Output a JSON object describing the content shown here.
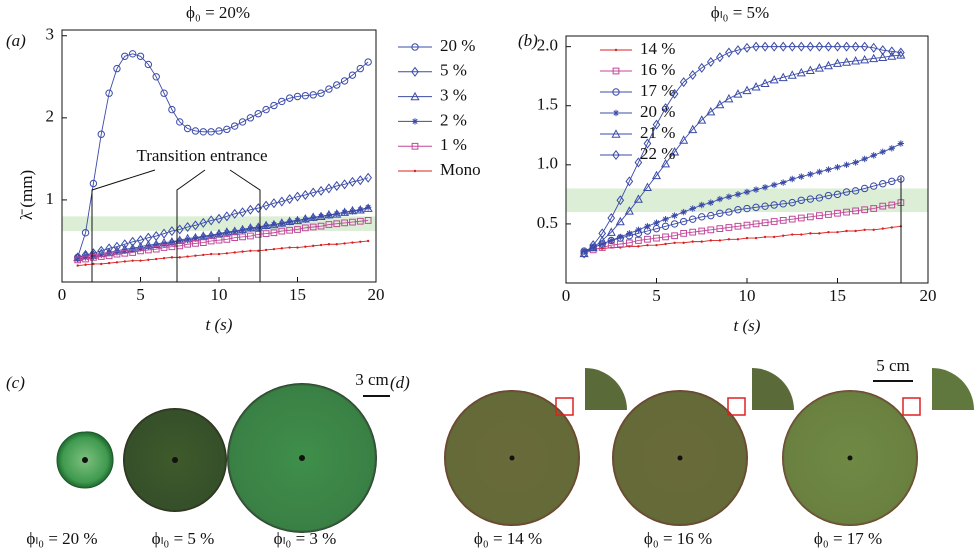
{
  "chart_data": [
    {
      "type": "line",
      "title": "ϕ₀ = 20%",
      "xlabel": "t (s)",
      "ylabel": "λ̄ (mm)",
      "annotation": "Transition entrance",
      "xlim": [
        0,
        20
      ],
      "ylim": [
        0,
        3.07
      ],
      "xticks": [
        0,
        5,
        10,
        15,
        20
      ],
      "yticks": [
        1,
        2,
        3
      ],
      "band": [
        0.62,
        0.8
      ],
      "band_color": "#dcefd6",
      "legend": "outside-right",
      "x": [
        1,
        1.5,
        2,
        2.5,
        3,
        3.5,
        4,
        4.5,
        5,
        5.5,
        6,
        6.5,
        7,
        7.5,
        8,
        8.5,
        9,
        9.5,
        10,
        10.5,
        11,
        11.5,
        12,
        12.5,
        13,
        13.5,
        14,
        14.5,
        15,
        15.5,
        16,
        16.5,
        17,
        17.5,
        18,
        18.5,
        19,
        19.5
      ],
      "series": [
        {
          "name": "20 %",
          "color": "#3b4ba8",
          "marker": "circle",
          "values": [
            0.3,
            0.6,
            1.2,
            1.8,
            2.3,
            2.6,
            2.75,
            2.78,
            2.75,
            2.65,
            2.5,
            2.3,
            2.1,
            1.95,
            1.87,
            1.84,
            1.83,
            1.83,
            1.84,
            1.86,
            1.9,
            1.95,
            2.0,
            2.05,
            2.1,
            2.15,
            2.2,
            2.24,
            2.26,
            2.27,
            2.28,
            2.3,
            2.35,
            2.4,
            2.45,
            2.52,
            2.6,
            2.68
          ]
        },
        {
          "name": "5 %",
          "color": "#3b4ba8",
          "marker": "diamond",
          "values": [
            0.3,
            0.33,
            0.35,
            0.38,
            0.41,
            0.43,
            0.46,
            0.49,
            0.51,
            0.54,
            0.56,
            0.59,
            0.62,
            0.64,
            0.67,
            0.69,
            0.72,
            0.75,
            0.77,
            0.8,
            0.83,
            0.85,
            0.88,
            0.9,
            0.93,
            0.96,
            0.98,
            1.01,
            1.04,
            1.06,
            1.09,
            1.11,
            1.14,
            1.17,
            1.19,
            1.22,
            1.24,
            1.27
          ]
        },
        {
          "name": "3 %",
          "color": "#3b4ba8",
          "marker": "triangle",
          "values": [
            0.3,
            0.32,
            0.33,
            0.35,
            0.36,
            0.38,
            0.4,
            0.41,
            0.43,
            0.45,
            0.46,
            0.48,
            0.49,
            0.51,
            0.53,
            0.54,
            0.56,
            0.57,
            0.59,
            0.61,
            0.62,
            0.64,
            0.66,
            0.67,
            0.69,
            0.7,
            0.72,
            0.74,
            0.75,
            0.77,
            0.79,
            0.8,
            0.82,
            0.83,
            0.85,
            0.87,
            0.88,
            0.9
          ]
        },
        {
          "name": "2 %",
          "color": "#3b4ba8",
          "marker": "star",
          "values": [
            0.28,
            0.3,
            0.31,
            0.33,
            0.35,
            0.36,
            0.38,
            0.4,
            0.41,
            0.43,
            0.45,
            0.46,
            0.48,
            0.5,
            0.51,
            0.53,
            0.55,
            0.56,
            0.58,
            0.6,
            0.61,
            0.63,
            0.65,
            0.66,
            0.68,
            0.7,
            0.71,
            0.73,
            0.75,
            0.76,
            0.78,
            0.8,
            0.81,
            0.83,
            0.85,
            0.86,
            0.88,
            0.91
          ]
        },
        {
          "name": "1 %",
          "color": "#c0479a",
          "marker": "square",
          "values": [
            0.27,
            0.28,
            0.3,
            0.31,
            0.32,
            0.34,
            0.35,
            0.36,
            0.38,
            0.39,
            0.4,
            0.42,
            0.43,
            0.44,
            0.46,
            0.47,
            0.48,
            0.5,
            0.51,
            0.52,
            0.54,
            0.55,
            0.56,
            0.58,
            0.59,
            0.6,
            0.62,
            0.63,
            0.64,
            0.66,
            0.67,
            0.68,
            0.7,
            0.71,
            0.72,
            0.73,
            0.74,
            0.75
          ]
        },
        {
          "name": "Mono",
          "color": "#d82020",
          "marker": "dot",
          "values": [
            0.2,
            0.21,
            0.22,
            0.22,
            0.23,
            0.24,
            0.25,
            0.26,
            0.26,
            0.27,
            0.28,
            0.29,
            0.3,
            0.3,
            0.31,
            0.32,
            0.33,
            0.34,
            0.34,
            0.35,
            0.36,
            0.37,
            0.38,
            0.38,
            0.39,
            0.4,
            0.41,
            0.42,
            0.42,
            0.43,
            0.44,
            0.45,
            0.46,
            0.46,
            0.47,
            0.48,
            0.49,
            0.5
          ]
        }
      ]
    },
    {
      "type": "line",
      "title": "ϕₗ₀ = 5%",
      "xlabel": "t (s)",
      "xlim": [
        0,
        20
      ],
      "ylim": [
        0,
        2.09
      ],
      "xticks": [
        0,
        5,
        10,
        15,
        20
      ],
      "yticks": [
        {
          "value": 0.5,
          "label": "0.5"
        },
        {
          "value": 1.0,
          "label": "1.0"
        },
        {
          "value": 1.5,
          "label": "1.5"
        },
        {
          "value": 2.0,
          "label": "2.0"
        }
      ],
      "band": [
        0.6,
        0.8
      ],
      "band_color": "#dcefd6",
      "legend": "upper-left",
      "x": [
        1,
        1.5,
        2,
        2.5,
        3,
        3.5,
        4,
        4.5,
        5,
        5.5,
        6,
        6.5,
        7,
        7.5,
        8,
        8.5,
        9,
        9.5,
        10,
        10.5,
        11,
        11.5,
        12,
        12.5,
        13,
        13.5,
        14,
        14.5,
        15,
        15.5,
        16,
        16.5,
        17,
        17.5,
        18,
        18.5
      ],
      "series": [
        {
          "name": "14 %",
          "color": "#d82020",
          "marker": "dot",
          "values": [
            0.28,
            0.29,
            0.29,
            0.3,
            0.3,
            0.31,
            0.31,
            0.32,
            0.32,
            0.33,
            0.34,
            0.34,
            0.35,
            0.35,
            0.36,
            0.36,
            0.37,
            0.37,
            0.38,
            0.38,
            0.39,
            0.39,
            0.4,
            0.41,
            0.41,
            0.42,
            0.42,
            0.43,
            0.43,
            0.44,
            0.44,
            0.45,
            0.45,
            0.46,
            0.47,
            0.48
          ]
        },
        {
          "name": "16 %",
          "color": "#c0479a",
          "marker": "square",
          "values": [
            0.25,
            0.28,
            0.3,
            0.32,
            0.33,
            0.34,
            0.36,
            0.37,
            0.38,
            0.39,
            0.4,
            0.42,
            0.43,
            0.44,
            0.45,
            0.46,
            0.47,
            0.48,
            0.49,
            0.5,
            0.51,
            0.52,
            0.53,
            0.54,
            0.55,
            0.56,
            0.57,
            0.58,
            0.59,
            0.6,
            0.61,
            0.62,
            0.63,
            0.65,
            0.66,
            0.68
          ]
        },
        {
          "name": "17 %",
          "color": "#3b4ba8",
          "marker": "circle",
          "values": [
            0.27,
            0.3,
            0.33,
            0.36,
            0.38,
            0.4,
            0.42,
            0.44,
            0.46,
            0.48,
            0.5,
            0.52,
            0.54,
            0.56,
            0.57,
            0.59,
            0.6,
            0.62,
            0.63,
            0.64,
            0.65,
            0.66,
            0.67,
            0.68,
            0.7,
            0.71,
            0.72,
            0.74,
            0.75,
            0.77,
            0.78,
            0.8,
            0.82,
            0.84,
            0.86,
            0.88
          ]
        },
        {
          "name": "20 %",
          "color": "#3b4ba8",
          "marker": "star",
          "values": [
            0.27,
            0.3,
            0.33,
            0.36,
            0.39,
            0.42,
            0.45,
            0.48,
            0.51,
            0.54,
            0.57,
            0.6,
            0.63,
            0.66,
            0.68,
            0.71,
            0.73,
            0.75,
            0.77,
            0.79,
            0.81,
            0.83,
            0.85,
            0.88,
            0.9,
            0.92,
            0.94,
            0.96,
            0.98,
            1.0,
            1.02,
            1.05,
            1.08,
            1.11,
            1.14,
            1.18
          ]
        },
        {
          "name": "21 %",
          "color": "#3b4ba8",
          "marker": "triangle",
          "values": [
            0.25,
            0.3,
            0.36,
            0.43,
            0.52,
            0.61,
            0.71,
            0.81,
            0.91,
            1.01,
            1.11,
            1.21,
            1.3,
            1.38,
            1.45,
            1.51,
            1.56,
            1.6,
            1.63,
            1.66,
            1.69,
            1.72,
            1.74,
            1.76,
            1.78,
            1.8,
            1.82,
            1.84,
            1.86,
            1.87,
            1.88,
            1.89,
            1.9,
            1.91,
            1.92,
            1.93
          ]
        },
        {
          "name": "22 %",
          "color": "#3b4ba8",
          "marker": "diamond",
          "values": [
            0.25,
            0.32,
            0.42,
            0.55,
            0.7,
            0.86,
            1.02,
            1.18,
            1.34,
            1.48,
            1.6,
            1.7,
            1.76,
            1.82,
            1.87,
            1.91,
            1.95,
            1.97,
            1.99,
            2.0,
            2.0,
            2.0,
            2.0,
            2.0,
            2.0,
            2.0,
            2.0,
            2.0,
            2.0,
            2.0,
            2.0,
            2.0,
            1.99,
            1.97,
            1.96,
            1.95
          ]
        }
      ]
    }
  ],
  "panel_labels": [
    "(a)",
    "(b)",
    "(c)",
    "(d)"
  ],
  "photos": {
    "scale_bars": [
      "3 cm",
      "5 cm"
    ],
    "captions": [
      "ϕₗ₀ = 20 %",
      "ϕₗ₀ = 5 %",
      "ϕₗ₀ = 3 %",
      "ϕ₀ = 14 %",
      "ϕ₀ = 16 %",
      "ϕ₀ = 17 %"
    ]
  }
}
